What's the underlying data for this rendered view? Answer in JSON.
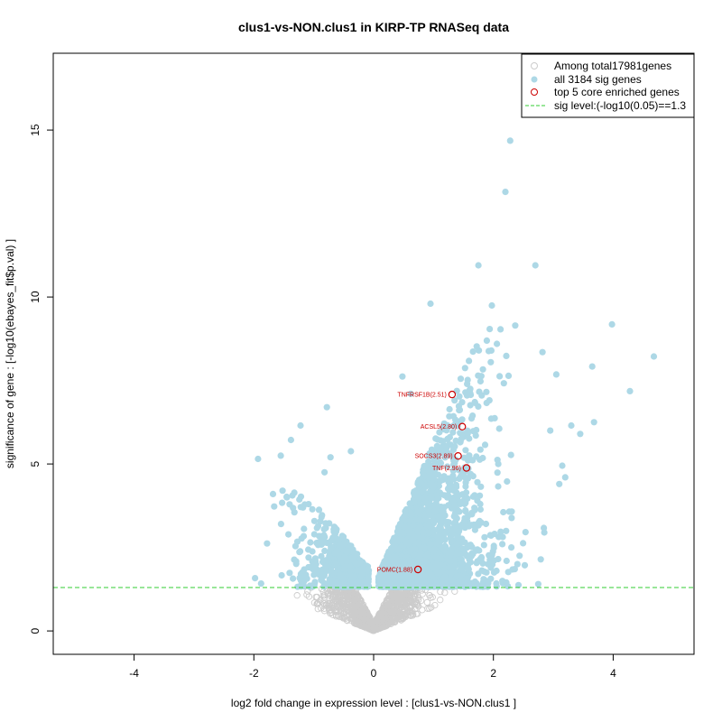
{
  "chart_data": {
    "type": "scatter",
    "title": "clus1-vs-NON.clus1 in KIRP-TP RNASeq data",
    "xlabel": "log2 fold change in expression level : [clus1-vs-NON.clus1 ]",
    "ylabel": "significance of gene : [-log10(ebayes_fit$p.val) ]",
    "xlim": [
      -5.35,
      5.35
    ],
    "ylim": [
      -0.7,
      17.3
    ],
    "x_ticks": [
      -4,
      -2,
      0,
      2,
      4
    ],
    "x_tick_labels": [
      "-4",
      "-2",
      "0",
      "2",
      "4"
    ],
    "y_ticks": [
      0,
      5,
      10,
      15
    ],
    "y_tick_labels": [
      "0",
      "5",
      "10",
      "15"
    ],
    "sig_level": 1.3,
    "legend": {
      "position": "top-right",
      "entries": [
        {
          "label": "Among total17981genes",
          "symbol": "open-circle",
          "color": "#cccccc"
        },
        {
          "label": "all 3184 sig genes",
          "symbol": "filled-circle",
          "color": "#add8e6"
        },
        {
          "label": "top 5 core enriched genes",
          "symbol": "open-circle",
          "color": "#cc0000"
        },
        {
          "label": "sig level:(-log10(0.05)==1.3",
          "symbol": "dashed-line",
          "color": "#33cc33"
        }
      ]
    },
    "colors": {
      "nonsig": "#cccccc",
      "sig": "#add8e6",
      "core": "#cc0000",
      "sigline": "#33cc33"
    },
    "core_genes": [
      {
        "name": "TNFRSF1B(2.51)",
        "x": 1.31,
        "y": 7.08
      },
      {
        "name": "ACSL5(2.80)",
        "x": 1.48,
        "y": 6.12
      },
      {
        "name": "SOCS3(2.89)",
        "x": 1.41,
        "y": 5.24
      },
      {
        "name": "TNF(2.96)",
        "x": 1.55,
        "y": 4.88
      },
      {
        "name": "POMC(1.88)",
        "x": 0.74,
        "y": 1.84
      }
    ],
    "notable_sig_points": [
      {
        "x": 2.28,
        "y": 14.68
      },
      {
        "x": 2.2,
        "y": 13.15
      },
      {
        "x": 1.75,
        "y": 10.95
      },
      {
        "x": 2.7,
        "y": 10.95
      },
      {
        "x": 3.98,
        "y": 9.18
      },
      {
        "x": 4.68,
        "y": 8.22
      },
      {
        "x": 3.65,
        "y": 7.92
      },
      {
        "x": 4.28,
        "y": 7.18
      },
      {
        "x": 3.68,
        "y": 6.25
      },
      {
        "x": 3.3,
        "y": 6.15
      },
      {
        "x": 3.45,
        "y": 5.9
      },
      {
        "x": 3.15,
        "y": 4.95
      },
      {
        "x": 3.2,
        "y": 4.6
      },
      {
        "x": 3.1,
        "y": 4.4
      },
      {
        "x": 2.85,
        "y": 2.95
      },
      {
        "x": 2.3,
        "y": 2.5
      },
      {
        "x": 2.4,
        "y": 2.0
      },
      {
        "x": 3.05,
        "y": 7.68
      },
      {
        "x": 2.95,
        "y": 6.0
      },
      {
        "x": 2.82,
        "y": 8.35
      },
      {
        "x": 0.95,
        "y": 9.8
      },
      {
        "x": 0.62,
        "y": 7.1
      },
      {
        "x": 0.48,
        "y": 7.62
      },
      {
        "x": -1.93,
        "y": 5.15
      },
      {
        "x": -1.38,
        "y": 5.72
      },
      {
        "x": -1.55,
        "y": 5.25
      },
      {
        "x": -1.22,
        "y": 6.15
      },
      {
        "x": -0.78,
        "y": 6.7
      },
      {
        "x": -0.72,
        "y": 5.2
      },
      {
        "x": -0.38,
        "y": 5.38
      },
      {
        "x": -0.82,
        "y": 4.75
      },
      {
        "x": -1.52,
        "y": 4.2
      },
      {
        "x": -1.68,
        "y": 4.1
      },
      {
        "x": -1.78,
        "y": 2.62
      },
      {
        "x": -1.98,
        "y": 1.58
      },
      {
        "x": -1.88,
        "y": 1.42
      }
    ],
    "cloud_regions": [
      {
        "x_range": [
          -1.6,
          -0.05
        ],
        "y_range": [
          1.3,
          4.2
        ],
        "density": "medium",
        "side": "left"
      },
      {
        "x_range": [
          0.05,
          2.7
        ],
        "y_range": [
          1.3,
          10.3
        ],
        "density": "high",
        "side": "right"
      }
    ],
    "nonsig_region": {
      "x_range": [
        -2.3,
        2.1
      ],
      "y_range": [
        0,
        1.3
      ]
    }
  }
}
